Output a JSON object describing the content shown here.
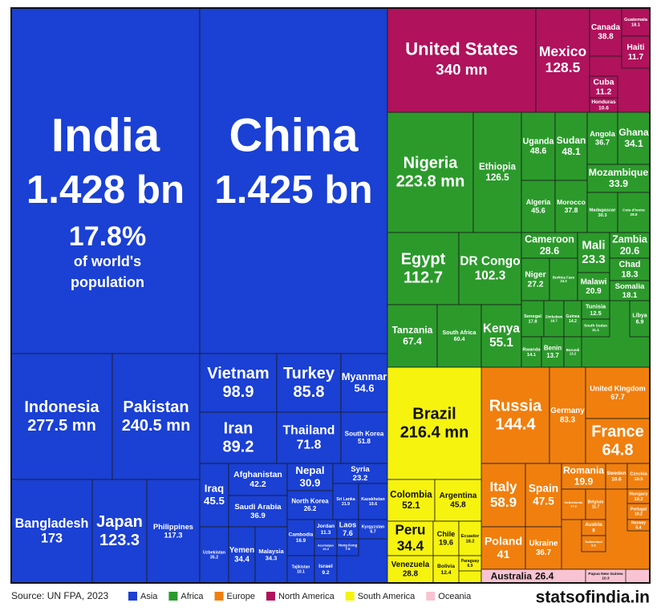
{
  "chart_data": {
    "type": "treemap",
    "annotation": {
      "share": "17.8%",
      "line1": "of world's",
      "line2": "population"
    },
    "source": "Source: UN FPA, 2023",
    "brand": "statsofindia.in",
    "groups": [
      {
        "name": "Asia",
        "color": "#1a40d4",
        "children": [
          {
            "name": "India",
            "value": 1428,
            "value_label": "1.428 bn"
          },
          {
            "name": "China",
            "value": 1425,
            "value_label": "1.425 bn"
          },
          {
            "name": "Indonesia",
            "value": 277.5,
            "value_label": "277.5 mn"
          },
          {
            "name": "Pakistan",
            "value": 240.5,
            "value_label": "240.5 mn"
          },
          {
            "name": "Bangladesh",
            "value": 173
          },
          {
            "name": "Japan",
            "value": 123.3
          },
          {
            "name": "Philippines",
            "value": 117.3
          },
          {
            "name": "Vietnam",
            "value": 98.9
          },
          {
            "name": "Turkey",
            "value": 85.8
          },
          {
            "name": "Myanmar",
            "value": 54.6
          },
          {
            "name": "Iran",
            "value": 89.2
          },
          {
            "name": "Thailand",
            "value": 71.8
          },
          {
            "name": "South Korea",
            "value": 51.8
          },
          {
            "name": "Iraq",
            "value": 45.5
          },
          {
            "name": "Afghanistan",
            "value": 42.2
          },
          {
            "name": "Saudi Arabia",
            "value": 36.9
          },
          {
            "name": "Nepal",
            "value": 30.9
          },
          {
            "name": "North Korea",
            "value": 26.2
          },
          {
            "name": "Syria",
            "value": 23.2
          },
          {
            "name": "Sri Lanka",
            "value": 21.9
          },
          {
            "name": "Kazakhstan",
            "value": 19.6
          },
          {
            "name": "Uzbekistan",
            "value": 35.2
          },
          {
            "name": "Yemen",
            "value": 34.4
          },
          {
            "name": "Malaysia",
            "value": 34.3
          },
          {
            "name": "Cambodia",
            "value": 16.9
          },
          {
            "name": "Jordan",
            "value": 11.3
          },
          {
            "name": "Laos",
            "value": 7.6
          },
          {
            "name": "Kyrgyzstan",
            "value": 6.7
          },
          {
            "name": "Azerbaijan",
            "value": 10.4
          },
          {
            "name": "Tajikistan",
            "value": 10.1
          },
          {
            "name": "Israel",
            "value": 9.2
          },
          {
            "name": "Hong Kong",
            "value": 7.5
          }
        ]
      },
      {
        "name": "Africa",
        "color": "#2b9a2b",
        "children": [
          {
            "name": "Nigeria",
            "value": 223.8,
            "value_label": "223.8 mn"
          },
          {
            "name": "Ethiopia",
            "value": 126.5
          },
          {
            "name": "Uganda",
            "value": 48.6
          },
          {
            "name": "Sudan",
            "value": 48.1
          },
          {
            "name": "Angola",
            "value": 36.7
          },
          {
            "name": "Ghana",
            "value": 34.1
          },
          {
            "name": "Mozambique",
            "value": 33.9
          },
          {
            "name": "Algeria",
            "value": 45.6
          },
          {
            "name": "Morocco",
            "value": 37.8
          },
          {
            "name": "Madagascar",
            "value": 30.3
          },
          {
            "name": "Cote d'Ivoire",
            "value": 28.9
          },
          {
            "name": "Egypt",
            "value": 112.7
          },
          {
            "name": "DR Congo",
            "value": 102.3
          },
          {
            "name": "Tanzania",
            "value": 67.4
          },
          {
            "name": "South Africa",
            "value": 60.4
          },
          {
            "name": "Kenya",
            "value": 55.1
          },
          {
            "name": "Cameroon",
            "value": 28.6
          },
          {
            "name": "Mali",
            "value": 23.3
          },
          {
            "name": "Zambia",
            "value": 20.6
          },
          {
            "name": "Niger",
            "value": 27.2
          },
          {
            "name": "Burkina Faso",
            "value": 23.3
          },
          {
            "name": "Malawi",
            "value": 20.9
          },
          {
            "name": "Chad",
            "value": 18.3
          },
          {
            "name": "Somalia",
            "value": 18.1
          },
          {
            "name": "Senegal",
            "value": 17.8
          },
          {
            "name": "Zimbabwe",
            "value": 16.7
          },
          {
            "name": "Guinea",
            "value": 14.2
          },
          {
            "name": "Tunisia",
            "value": 12.5
          },
          {
            "name": "South Sudan",
            "value": 11.1
          },
          {
            "name": "Rwanda",
            "value": 14.1
          },
          {
            "name": "Benin",
            "value": 13.7
          },
          {
            "name": "Burundi",
            "value": 13.2
          },
          {
            "name": "Libya",
            "value": 6.9
          }
        ]
      },
      {
        "name": "Europe",
        "color": "#f07f0e",
        "children": [
          {
            "name": "Russia",
            "value": 144.4
          },
          {
            "name": "Germany",
            "value": 83.3
          },
          {
            "name": "United Kingdom",
            "value": 67.7
          },
          {
            "name": "France",
            "value": 64.8
          },
          {
            "name": "Italy",
            "value": 58.9
          },
          {
            "name": "Spain",
            "value": 47.5
          },
          {
            "name": "Poland",
            "value": 41
          },
          {
            "name": "Ukraine",
            "value": 36.7
          },
          {
            "name": "Romania",
            "value": 19.9
          },
          {
            "name": "Sweden",
            "value": 10.6
          },
          {
            "name": "Czechia",
            "value": 10.5
          },
          {
            "name": "Netherlands",
            "value": 17.6
          },
          {
            "name": "Belgium",
            "value": 11.7
          },
          {
            "name": "Hungary",
            "value": 10.2
          },
          {
            "name": "Portugal",
            "value": 10.2
          },
          {
            "name": "Austria",
            "value": 9
          },
          {
            "name": "Switzerland",
            "value": 8.8
          },
          {
            "name": "Norway",
            "value": 5.4
          }
        ]
      },
      {
        "name": "North America",
        "color": "#b0125c",
        "children": [
          {
            "name": "United States",
            "value": 340,
            "value_label": "340 mn"
          },
          {
            "name": "Mexico",
            "value": 128.5
          },
          {
            "name": "Canada",
            "value": 38.8
          },
          {
            "name": "Guatemala",
            "value": 18.1
          },
          {
            "name": "Haiti",
            "value": 11.7
          },
          {
            "name": "Cuba",
            "value": 11.2
          },
          {
            "name": "Honduras",
            "value": 10.6
          }
        ]
      },
      {
        "name": "South America",
        "color": "#f6f30f",
        "children": [
          {
            "name": "Brazil",
            "value": 216.4,
            "value_label": "216.4 mn"
          },
          {
            "name": "Colombia",
            "value": 52.1
          },
          {
            "name": "Argentina",
            "value": 45.8
          },
          {
            "name": "Peru",
            "value": 34.4
          },
          {
            "name": "Venezuela",
            "value": 28.8
          },
          {
            "name": "Chile",
            "value": 19.6
          },
          {
            "name": "Ecuador",
            "value": 18.2
          },
          {
            "name": "Bolivia",
            "value": 12.4
          },
          {
            "name": "Paraguay",
            "value": 6.9
          }
        ]
      },
      {
        "name": "Oceania",
        "color": "#f8c3d2",
        "children": [
          {
            "name": "Australia",
            "value": 26.4
          },
          {
            "name": "Papua New Guinea",
            "value": 10.3
          }
        ]
      }
    ]
  }
}
